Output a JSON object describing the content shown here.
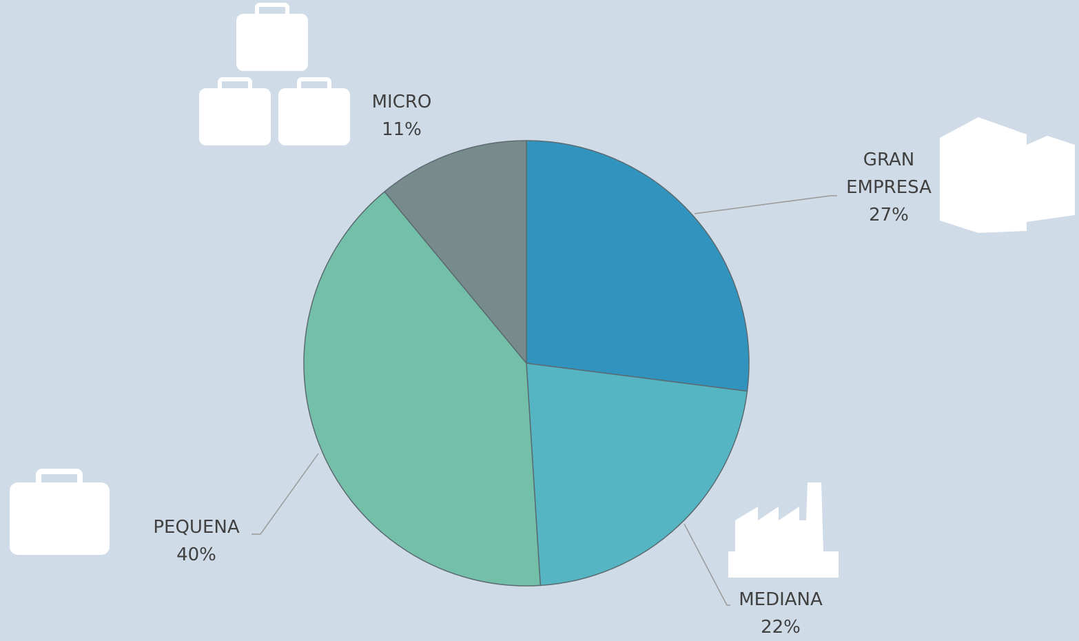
{
  "chart_data": {
    "type": "pie",
    "categories": [
      "GRAN EMPRESA",
      "MEDIANA",
      "PEQUENA",
      "MICRO"
    ],
    "values": [
      27,
      22,
      40,
      11
    ],
    "value_labels": [
      "27%",
      "22%",
      "40%",
      "11%"
    ],
    "colors": [
      "#3194be",
      "#55b5c2",
      "#74bfa8",
      "#788b8c"
    ]
  }
}
